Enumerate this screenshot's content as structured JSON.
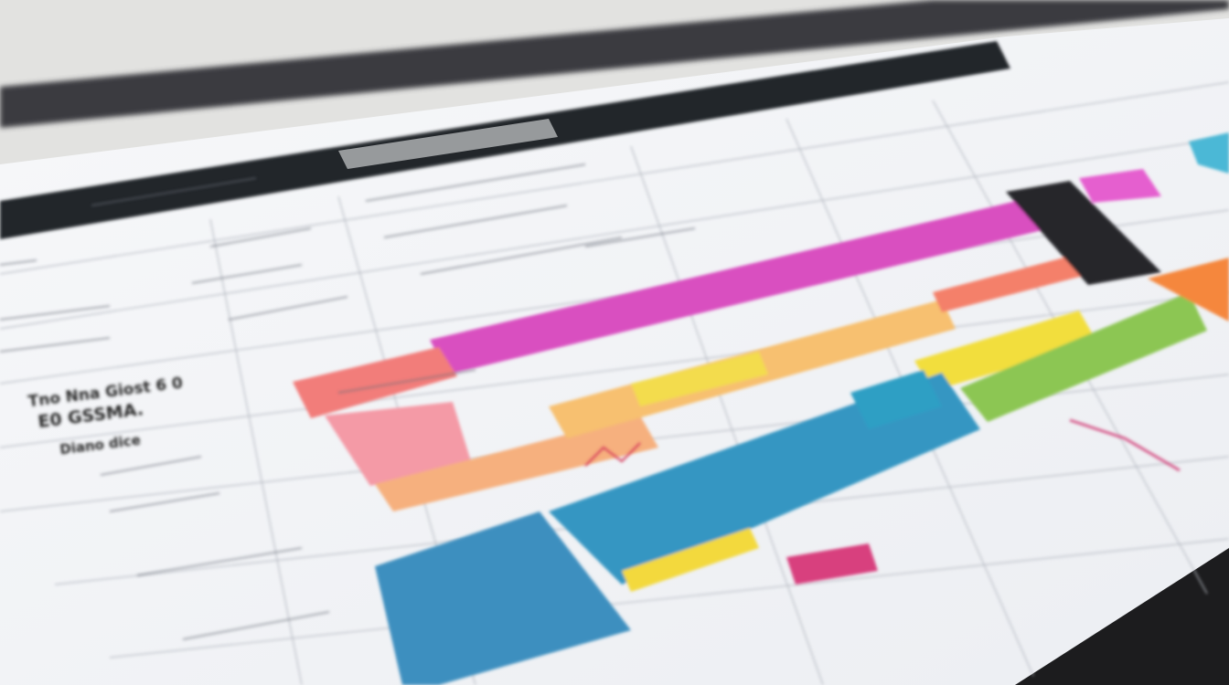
{
  "document": {
    "labels": [
      "Tno Nna Giost 6 0",
      "E0 GSSMA.",
      "Diano dice"
    ]
  }
}
